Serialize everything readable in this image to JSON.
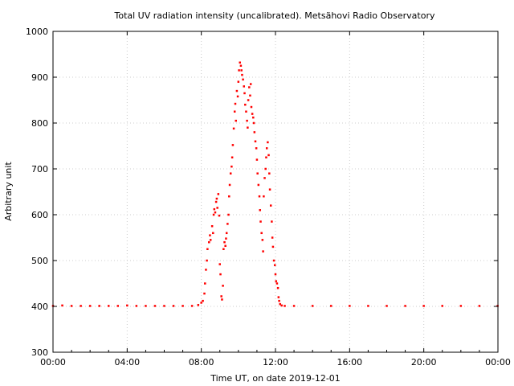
{
  "chart_data": {
    "type": "scatter",
    "title": "Total UV radiation intensity (uncalibrated). Metsähovi Radio Observatory",
    "xlabel": "Time UT, on date 2019-12-01",
    "ylabel": "Arbitrary unit",
    "xlim": [
      "00:00",
      "24:00"
    ],
    "ylim": [
      300,
      1000
    ],
    "x_ticks": [
      "00:00",
      "04:00",
      "08:00",
      "12:00",
      "16:00",
      "20:00",
      "00:00"
    ],
    "y_ticks": [
      300,
      400,
      500,
      600,
      700,
      800,
      900,
      1000
    ],
    "grid": true,
    "series": [
      {
        "color": "#ff0000",
        "points": [
          [
            "00:00",
            401
          ],
          [
            "00:30",
            402
          ],
          [
            "01:00",
            401
          ],
          [
            "01:30",
            401
          ],
          [
            "02:00",
            401
          ],
          [
            "02:30",
            401
          ],
          [
            "03:00",
            401
          ],
          [
            "03:30",
            401
          ],
          [
            "04:00",
            402
          ],
          [
            "04:30",
            401
          ],
          [
            "05:00",
            401
          ],
          [
            "05:30",
            401
          ],
          [
            "06:00",
            401
          ],
          [
            "06:30",
            401
          ],
          [
            "07:00",
            401
          ],
          [
            "07:30",
            401
          ],
          [
            "07:50",
            403
          ],
          [
            "08:00",
            408
          ],
          [
            "08:05",
            412
          ],
          [
            "08:10",
            428
          ],
          [
            "08:12",
            450
          ],
          [
            "08:15",
            480
          ],
          [
            "08:18",
            500
          ],
          [
            "08:20",
            525
          ],
          [
            "08:25",
            540
          ],
          [
            "08:28",
            555
          ],
          [
            "08:30",
            545
          ],
          [
            "08:35",
            575
          ],
          [
            "08:38",
            560
          ],
          [
            "08:40",
            600
          ],
          [
            "08:42",
            612
          ],
          [
            "08:45",
            605
          ],
          [
            "08:48",
            628
          ],
          [
            "08:50",
            635
          ],
          [
            "08:52",
            615
          ],
          [
            "08:55",
            645
          ],
          [
            "08:58",
            598
          ],
          [
            "09:00",
            492
          ],
          [
            "09:02",
            470
          ],
          [
            "09:05",
            422
          ],
          [
            "09:07",
            415
          ],
          [
            "09:10",
            445
          ],
          [
            "09:12",
            525
          ],
          [
            "09:15",
            540
          ],
          [
            "09:18",
            532
          ],
          [
            "09:20",
            548
          ],
          [
            "09:22",
            560
          ],
          [
            "09:25",
            580
          ],
          [
            "09:28",
            600
          ],
          [
            "09:30",
            640
          ],
          [
            "09:32",
            665
          ],
          [
            "09:35",
            690
          ],
          [
            "09:38",
            705
          ],
          [
            "09:40",
            725
          ],
          [
            "09:42",
            752
          ],
          [
            "09:45",
            788
          ],
          [
            "09:48",
            825
          ],
          [
            "09:50",
            842
          ],
          [
            "09:52",
            805
          ],
          [
            "09:55",
            870
          ],
          [
            "09:58",
            858
          ],
          [
            "10:00",
            890
          ],
          [
            "10:02",
            915
          ],
          [
            "10:05",
            932
          ],
          [
            "10:08",
            925
          ],
          [
            "10:10",
            915
          ],
          [
            "10:12",
            905
          ],
          [
            "10:15",
            895
          ],
          [
            "10:18",
            880
          ],
          [
            "10:20",
            865
          ],
          [
            "10:22",
            840
          ],
          [
            "10:25",
            825
          ],
          [
            "10:28",
            805
          ],
          [
            "10:30",
            790
          ],
          [
            "10:32",
            850
          ],
          [
            "10:35",
            878
          ],
          [
            "10:38",
            860
          ],
          [
            "10:40",
            885
          ],
          [
            "10:42",
            835
          ],
          [
            "10:45",
            820
          ],
          [
            "10:48",
            812
          ],
          [
            "10:50",
            800
          ],
          [
            "10:52",
            780
          ],
          [
            "10:55",
            760
          ],
          [
            "10:58",
            745
          ],
          [
            "11:00",
            720
          ],
          [
            "11:02",
            690
          ],
          [
            "11:05",
            665
          ],
          [
            "11:08",
            640
          ],
          [
            "11:10",
            610
          ],
          [
            "11:12",
            585
          ],
          [
            "11:15",
            560
          ],
          [
            "11:18",
            545
          ],
          [
            "11:20",
            520
          ],
          [
            "11:22",
            640
          ],
          [
            "11:25",
            680
          ],
          [
            "11:28",
            700
          ],
          [
            "11:30",
            725
          ],
          [
            "11:32",
            745
          ],
          [
            "11:35",
            758
          ],
          [
            "11:38",
            730
          ],
          [
            "11:40",
            690
          ],
          [
            "11:42",
            655
          ],
          [
            "11:45",
            620
          ],
          [
            "11:48",
            585
          ],
          [
            "11:50",
            550
          ],
          [
            "11:52",
            530
          ],
          [
            "11:55",
            500
          ],
          [
            "11:58",
            490
          ],
          [
            "12:00",
            470
          ],
          [
            "12:02",
            455
          ],
          [
            "12:05",
            450
          ],
          [
            "12:08",
            440
          ],
          [
            "12:10",
            420
          ],
          [
            "12:12",
            412
          ],
          [
            "12:15",
            405
          ],
          [
            "12:20",
            402
          ],
          [
            "12:30",
            401
          ],
          [
            "13:00",
            401
          ],
          [
            "14:00",
            401
          ],
          [
            "15:00",
            401
          ],
          [
            "16:00",
            401
          ],
          [
            "17:00",
            401
          ],
          [
            "18:00",
            401
          ],
          [
            "19:00",
            401
          ],
          [
            "20:00",
            401
          ],
          [
            "21:00",
            401
          ],
          [
            "22:00",
            401
          ],
          [
            "23:00",
            401
          ],
          [
            "23:59",
            401
          ]
        ]
      }
    ]
  }
}
